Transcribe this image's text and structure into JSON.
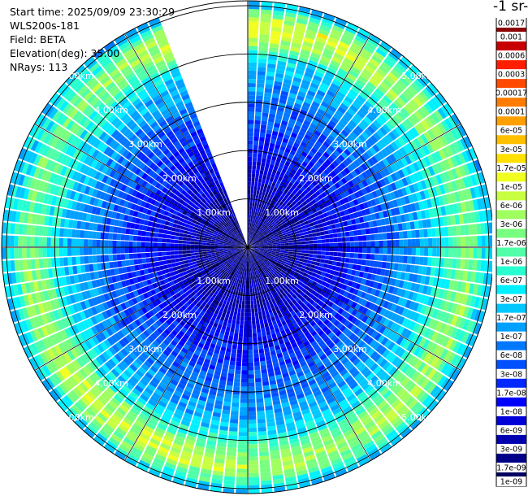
{
  "header": {
    "start_time": "Start time: 2025/09/09 23:30:29",
    "instrument": "WLS200s-181",
    "field": "Field: BETA",
    "elevation": "Elevation(deg): 35.00",
    "nrays": "NRays: 113"
  },
  "colorbar": {
    "title": "-1 sr-",
    "labels": [
      "0.0017",
      "0.001",
      "0.0006",
      "0.0003",
      "0.00017",
      "0.0001",
      "6e-05",
      "3e-05",
      "1.7e-05",
      "1e-05",
      "6e-06",
      "3e-06",
      "1.7e-06",
      "1e-06",
      "6e-07",
      "3e-07",
      "1.7e-07",
      "1e-07",
      "6e-08",
      "3e-08",
      "1.7e-08",
      "1e-08",
      "6e-09",
      "3e-09",
      "1.7e-09",
      "1e-09"
    ],
    "colors": [
      "#8b0000",
      "#c80000",
      "#ff1e00",
      "#ff4a00",
      "#ff7c00",
      "#ff9f00",
      "#ffc000",
      "#ffe000",
      "#f0ff20",
      "#c8ff40",
      "#a0ff60",
      "#78ff80",
      "#50ffa8",
      "#28ffd0",
      "#00f0ff",
      "#00c8ff",
      "#00a0ff",
      "#0078ff",
      "#0050ff",
      "#0028ff",
      "#0000ff",
      "#0000d8",
      "#0000b0",
      "#000088",
      "#000060"
    ]
  },
  "chart_data": {
    "type": "ppi_polar_heatmap",
    "field": "BETA",
    "elevation_deg": 35.0,
    "nrays": 113,
    "range_rings_km": [
      1,
      2,
      3,
      4,
      5
    ],
    "ring_labels_upper": [
      "1.00km",
      "2.00km",
      "3.00km",
      "4.00km",
      "5.00km"
    ],
    "ring_labels_lower": [
      "1.00km",
      "2.00km",
      "3.00km",
      "4.00km",
      "5.00km"
    ],
    "azimuth_gridlines_deg": [
      0,
      30,
      60,
      90,
      120,
      150,
      180,
      210,
      240,
      270,
      300,
      330
    ],
    "data_gap_azimuth_deg": [
      -21,
      0
    ],
    "max_range_km": 5.1,
    "radial_profile_log10": [
      {
        "r_km": 0.0,
        "value": -8.7
      },
      {
        "r_km": 1.0,
        "value": -8.4
      },
      {
        "r_km": 2.0,
        "value": -7.8
      },
      {
        "r_km": 3.0,
        "value": -7.2
      },
      {
        "r_km": 3.8,
        "value": -6.6
      },
      {
        "r_km": 4.3,
        "value": -5.6
      },
      {
        "r_km": 4.6,
        "value": -5.3
      },
      {
        "r_km": 4.9,
        "value": -6.2
      },
      {
        "r_km": 5.1,
        "value": -6.8
      }
    ]
  }
}
